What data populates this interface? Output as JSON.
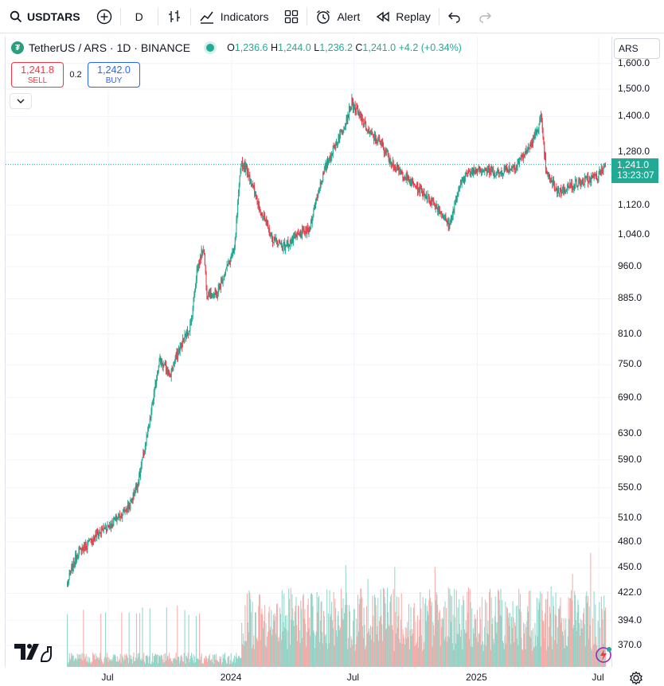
{
  "toolbar": {
    "symbol": "USDTARS",
    "interval": "D",
    "indicators_label": "Indicators",
    "alert_label": "Alert",
    "replay_label": "Replay"
  },
  "legend": {
    "title": "TetherUS / ARS · 1D · BINANCE",
    "open": "1,236.6",
    "high": "1,244.0",
    "low": "1,236.2",
    "close": "1,241.0",
    "change": "+4.2 (+0.34%)"
  },
  "trade": {
    "sell_price": "1,241.8",
    "sell_label": "SELL",
    "spread": "0.2",
    "buy_price": "1,242.0",
    "buy_label": "BUY"
  },
  "price_scale": {
    "currency": "ARS",
    "last_price": "1,241.0",
    "countdown": "13:23:07"
  },
  "colors": {
    "up": "#22ab94",
    "down": "#f23645",
    "up_volume": "#8fd4c7",
    "down_volume": "#f7a9a7",
    "grid": "#f0f3fa"
  },
  "chart_data": {
    "type": "candlestick",
    "symbol": "USDTARS",
    "exchange": "BINANCE",
    "interval": "1D",
    "y_scale": "log",
    "ylim": [
      360,
      1620
    ],
    "y_ticks": [
      "1,600.0",
      "1,500.0",
      "1,400.0",
      "1,280.0",
      "1,120.0",
      "1,040.0",
      "960.0",
      "885.0",
      "810.0",
      "750.0",
      "690.0",
      "630.0",
      "590.0",
      "550.0",
      "510.0",
      "480.0",
      "450.0",
      "422.0",
      "394.0",
      "370.0"
    ],
    "y_tick_values": [
      1600,
      1500,
      1400,
      1280,
      1120,
      1040,
      960,
      885,
      810,
      750,
      690,
      630,
      590,
      550,
      510,
      480,
      450,
      422,
      394,
      370
    ],
    "x_ticks": [
      "Jul",
      "2024",
      "Jul",
      "2025",
      "Jul"
    ],
    "x_tick_dates": [
      "2023-07-01",
      "2024-01-01",
      "2024-07-01",
      "2025-01-01",
      "2025-07-01"
    ],
    "x_range": [
      "2023-04-25",
      "2025-07-12"
    ],
    "grid": true,
    "price_path": [
      {
        "date": "2023-05-01",
        "close": 432
      },
      {
        "date": "2023-05-15",
        "close": 465
      },
      {
        "date": "2023-06-01",
        "close": 478
      },
      {
        "date": "2023-06-15",
        "close": 490
      },
      {
        "date": "2023-07-01",
        "close": 500
      },
      {
        "date": "2023-07-15",
        "close": 510
      },
      {
        "date": "2023-08-01",
        "close": 525
      },
      {
        "date": "2023-08-15",
        "close": 560
      },
      {
        "date": "2023-09-01",
        "close": 650
      },
      {
        "date": "2023-09-15",
        "close": 760
      },
      {
        "date": "2023-10-01",
        "close": 730
      },
      {
        "date": "2023-10-15",
        "close": 780
      },
      {
        "date": "2023-11-01",
        "close": 830
      },
      {
        "date": "2023-11-10",
        "close": 950
      },
      {
        "date": "2023-11-20",
        "close": 1010
      },
      {
        "date": "2023-11-25",
        "close": 900
      },
      {
        "date": "2023-12-10",
        "close": 895
      },
      {
        "date": "2023-12-20",
        "close": 940
      },
      {
        "date": "2024-01-05",
        "close": 1000
      },
      {
        "date": "2024-01-15",
        "close": 1250
      },
      {
        "date": "2024-01-25",
        "close": 1220
      },
      {
        "date": "2024-02-10",
        "close": 1120
      },
      {
        "date": "2024-03-01",
        "close": 1030
      },
      {
        "date": "2024-03-20",
        "close": 1010
      },
      {
        "date": "2024-04-10",
        "close": 1040
      },
      {
        "date": "2024-04-25",
        "close": 1050
      },
      {
        "date": "2024-05-10",
        "close": 1170
      },
      {
        "date": "2024-05-25",
        "close": 1260
      },
      {
        "date": "2024-06-15",
        "close": 1360
      },
      {
        "date": "2024-06-28",
        "close": 1450
      },
      {
        "date": "2024-07-10",
        "close": 1400
      },
      {
        "date": "2024-07-25",
        "close": 1340
      },
      {
        "date": "2024-08-10",
        "close": 1310
      },
      {
        "date": "2024-09-01",
        "close": 1230
      },
      {
        "date": "2024-10-01",
        "close": 1175
      },
      {
        "date": "2024-11-01",
        "close": 1120
      },
      {
        "date": "2024-11-20",
        "close": 1065
      },
      {
        "date": "2024-12-10",
        "close": 1200
      },
      {
        "date": "2025-01-01",
        "close": 1230
      },
      {
        "date": "2025-02-01",
        "close": 1215
      },
      {
        "date": "2025-03-01",
        "close": 1240
      },
      {
        "date": "2025-03-25",
        "close": 1315
      },
      {
        "date": "2025-04-06",
        "close": 1395
      },
      {
        "date": "2025-04-14",
        "close": 1210
      },
      {
        "date": "2025-05-01",
        "close": 1160
      },
      {
        "date": "2025-05-20",
        "close": 1175
      },
      {
        "date": "2025-06-10",
        "close": 1190
      },
      {
        "date": "2025-06-30",
        "close": 1205
      },
      {
        "date": "2025-07-11",
        "close": 1241
      }
    ],
    "last": {
      "open": 1236.6,
      "high": 1244.0,
      "low": 1236.2,
      "close": 1241.0,
      "change": 4.2,
      "change_pct": 0.34
    }
  }
}
